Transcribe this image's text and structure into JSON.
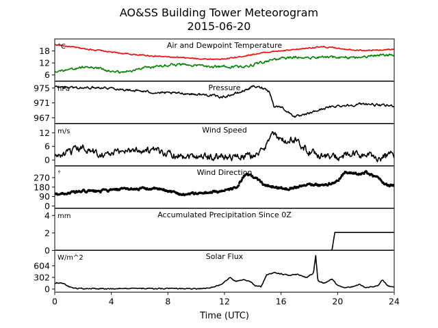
{
  "header": {
    "title": "AO&SS Building Tower Meteorogram",
    "subtitle": "2015-06-20"
  },
  "chart_data": {
    "type": "line",
    "title": "AO&SS Building Tower Meteorogram",
    "subtitle": "2015-06-20",
    "xlabel": "Time (UTC)",
    "x_range": [
      0,
      24
    ],
    "x_ticks": [
      0,
      4,
      8,
      12,
      16,
      20,
      24
    ],
    "grid": false,
    "panels": [
      {
        "id": "temp",
        "title": "Air and Dewpoint Temperature",
        "unit": "°C",
        "ylim": [
          3,
          24
        ],
        "yticks": [
          6,
          12,
          18
        ],
        "series": [
          {
            "color": "#ff0000",
            "noise": 0.25,
            "points": [
              [
                0,
                21.2
              ],
              [
                1,
                20.2
              ],
              [
                2,
                19.2
              ],
              [
                3,
                18.4
              ],
              [
                4,
                17.4
              ],
              [
                5,
                16.6
              ],
              [
                6,
                16.0
              ],
              [
                7,
                15.5
              ],
              [
                8,
                15.0
              ],
              [
                9,
                14.6
              ],
              [
                10,
                14.2
              ],
              [
                11,
                13.9
              ],
              [
                12,
                14.0
              ],
              [
                13,
                15.0
              ],
              [
                14,
                16.3
              ],
              [
                15,
                17.4
              ],
              [
                16,
                18.0
              ],
              [
                17,
                18.6
              ],
              [
                18,
                19.6
              ],
              [
                19,
                20.0
              ],
              [
                20,
                19.4
              ],
              [
                21,
                18.7
              ],
              [
                22,
                18.2
              ],
              [
                23,
                18.5
              ],
              [
                24,
                18.9
              ]
            ]
          },
          {
            "color": "#008000",
            "noise": 0.5,
            "points": [
              [
                0,
                8.0
              ],
              [
                1,
                8.3
              ],
              [
                2,
                10.0
              ],
              [
                3,
                9.5
              ],
              [
                4,
                7.6
              ],
              [
                5,
                7.6
              ],
              [
                6,
                9.0
              ],
              [
                7,
                10.0
              ],
              [
                8,
                11.0
              ],
              [
                9,
                11.3
              ],
              [
                10,
                10.8
              ],
              [
                11,
                10.0
              ],
              [
                12,
                10.2
              ],
              [
                13,
                10.0
              ],
              [
                14,
                11.0
              ],
              [
                15,
                13.0
              ],
              [
                16,
                14.2
              ],
              [
                17,
                15.0
              ],
              [
                18,
                14.8
              ],
              [
                19,
                14.8
              ],
              [
                20,
                15.0
              ],
              [
                21,
                14.8
              ],
              [
                22,
                15.2
              ],
              [
                23,
                15.8
              ],
              [
                24,
                15.9
              ]
            ]
          }
        ]
      },
      {
        "id": "pres",
        "title": "Pressure",
        "unit": "hPa",
        "ylim": [
          965.5,
          976.8
        ],
        "yticks": [
          967,
          971,
          975
        ],
        "series": [
          {
            "color": "#000000",
            "noise": 0.25,
            "points": [
              [
                0,
                975.3
              ],
              [
                1,
                975.2
              ],
              [
                2,
                975.0
              ],
              [
                3,
                975.2
              ],
              [
                4,
                975.0
              ],
              [
                5,
                974.5
              ],
              [
                6,
                974.2
              ],
              [
                7,
                973.8
              ],
              [
                8,
                973.6
              ],
              [
                9,
                973.6
              ],
              [
                10,
                973.3
              ],
              [
                11,
                973.1
              ],
              [
                11.8,
                972.5
              ],
              [
                12.5,
                973.2
              ],
              [
                13,
                973.7
              ],
              [
                13.5,
                974.5
              ],
              [
                14,
                975.4
              ],
              [
                14.8,
                975.0
              ],
              [
                15.2,
                974.0
              ],
              [
                15.5,
                970.0
              ],
              [
                16,
                970.0
              ],
              [
                16.5,
                968.5
              ],
              [
                17,
                967.3
              ],
              [
                17.5,
                967.5
              ],
              [
                18,
                968.2
              ],
              [
                19,
                969.5
              ],
              [
                20,
                970.2
              ],
              [
                21,
                970.4
              ],
              [
                22,
                970.8
              ],
              [
                23,
                970.3
              ],
              [
                24,
                970.2
              ]
            ]
          }
        ]
      },
      {
        "id": "wspd",
        "title": "Wind Speed",
        "unit": "m/s",
        "ylim": [
          -2.5,
          16
        ],
        "yticks": [
          0,
          6,
          12
        ],
        "series": [
          {
            "color": "#000000",
            "noise": 1.3,
            "points": [
              [
                0,
                1.5
              ],
              [
                1,
                3.0
              ],
              [
                2,
                5.5
              ],
              [
                3,
                3.0
              ],
              [
                4,
                2.5
              ],
              [
                5,
                4.5
              ],
              [
                6,
                4.5
              ],
              [
                7,
                4.0
              ],
              [
                8,
                3.0
              ],
              [
                9,
                2.0
              ],
              [
                10,
                2.0
              ],
              [
                11,
                1.5
              ],
              [
                12,
                1.5
              ],
              [
                13,
                1.5
              ],
              [
                14,
                2.0
              ],
              [
                14.8,
                4.0
              ],
              [
                15.3,
                13.0
              ],
              [
                15.8,
                9.0
              ],
              [
                16.5,
                8.0
              ],
              [
                17,
                9.0
              ],
              [
                17.5,
                6.0
              ],
              [
                18,
                3.5
              ],
              [
                19,
                2.0
              ],
              [
                20,
                1.0
              ],
              [
                21,
                2.5
              ],
              [
                22,
                2.0
              ],
              [
                23,
                1.0
              ],
              [
                24,
                2.5
              ]
            ]
          }
        ]
      },
      {
        "id": "wdir",
        "title": "Wind Direction",
        "unit": "°",
        "ylim": [
          -20,
          380
        ],
        "yticks": [
          0,
          90,
          180,
          270
        ],
        "series": [
          {
            "color": "#000000",
            "noise": 9,
            "marker": "dot",
            "points": [
              [
                0,
                110
              ],
              [
                1,
                125
              ],
              [
                2,
                140
              ],
              [
                3,
                140
              ],
              [
                4,
                150
              ],
              [
                5,
                160
              ],
              [
                6,
                165
              ],
              [
                7,
                165
              ],
              [
                8,
                145
              ],
              [
                9,
                110
              ],
              [
                10,
                120
              ],
              [
                11,
                130
              ],
              [
                12,
                145
              ],
              [
                12.8,
                170
              ],
              [
                13.5,
                300
              ],
              [
                14.2,
                270
              ],
              [
                14.8,
                200
              ],
              [
                15.5,
                180
              ],
              [
                16.5,
                165
              ],
              [
                17,
                180
              ],
              [
                18,
                210
              ],
              [
                19,
                195
              ],
              [
                20,
                235
              ],
              [
                20.5,
                325
              ],
              [
                21.5,
                300
              ],
              [
                22,
                320
              ],
              [
                22.8,
                270
              ],
              [
                23.5,
                200
              ],
              [
                24,
                195
              ]
            ]
          }
        ]
      },
      {
        "id": "precip",
        "title": "Accumulated Precipitation Since 0Z",
        "unit": "mm",
        "ylim": [
          0,
          4.8
        ],
        "yticks": [
          0,
          2,
          4
        ],
        "series": [
          {
            "color": "#000000",
            "noise": 0,
            "points": [
              [
                0,
                0
              ],
              [
                19.6,
                0
              ],
              [
                19.8,
                2.05
              ],
              [
                24,
                2.05
              ]
            ]
          }
        ]
      },
      {
        "id": "solar",
        "title": "Solar Flux",
        "unit": "W/m^2",
        "ylim": [
          -80,
          1010
        ],
        "yticks": [
          0,
          302,
          604
        ],
        "series": [
          {
            "color": "#000000",
            "noise": 12,
            "points": [
              [
                0,
                150
              ],
              [
                0.5,
                170
              ],
              [
                1,
                70
              ],
              [
                1.3,
                30
              ],
              [
                2,
                15
              ],
              [
                4,
                10
              ],
              [
                6,
                10
              ],
              [
                8,
                10
              ],
              [
                10,
                10
              ],
              [
                11,
                25
              ],
              [
                11.8,
                130
              ],
              [
                12.4,
                300
              ],
              [
                12.8,
                190
              ],
              [
                13.3,
                250
              ],
              [
                13.8,
                200
              ],
              [
                14.2,
                80
              ],
              [
                14.6,
                60
              ],
              [
                15.0,
                380
              ],
              [
                15.6,
                420
              ],
              [
                16.5,
                360
              ],
              [
                17.2,
                380
              ],
              [
                17.8,
                300
              ],
              [
                18.3,
                420
              ],
              [
                18.45,
                880
              ],
              [
                18.6,
                240
              ],
              [
                19,
                150
              ],
              [
                19.6,
                250
              ],
              [
                20,
                90
              ],
              [
                20.5,
                30
              ],
              [
                21,
                50
              ],
              [
                21.5,
                120
              ],
              [
                22,
                40
              ],
              [
                22.8,
                80
              ],
              [
                23.2,
                250
              ],
              [
                23.5,
                80
              ],
              [
                24,
                60
              ]
            ]
          }
        ]
      }
    ]
  }
}
